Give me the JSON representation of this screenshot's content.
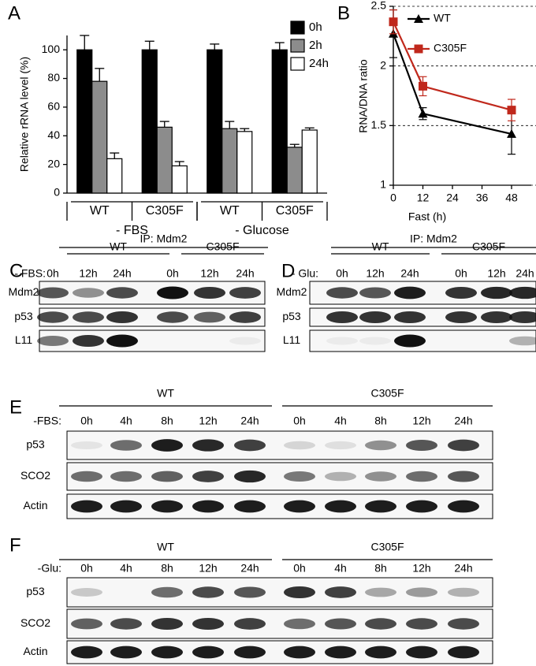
{
  "chart_data": [
    {
      "type": "bar",
      "panel": "A",
      "ylabel": "Relative rRNA level (%)",
      "categories": [
        "WT",
        "C305F",
        "WT",
        "C305F"
      ],
      "group_labels": [
        "- FBS",
        "- Glucose"
      ],
      "series": [
        {
          "name": "0h",
          "color": "#000000",
          "values": [
            100,
            100,
            100,
            100
          ],
          "errors": [
            10,
            6,
            4,
            5
          ]
        },
        {
          "name": "2h",
          "color": "#8c8c8c",
          "values": [
            78,
            46,
            45,
            32
          ],
          "errors": [
            9,
            4,
            5,
            2
          ]
        },
        {
          "name": "24h",
          "color": "#ffffff",
          "values": [
            24,
            19,
            43,
            44
          ],
          "errors": [
            4,
            3,
            2,
            1.5
          ]
        }
      ],
      "ylim": [
        0,
        110
      ],
      "yticks": [
        0,
        20,
        40,
        60,
        80,
        100
      ]
    },
    {
      "type": "line",
      "panel": "B",
      "xlabel": "Fast (h)",
      "ylabel": "RNA/DNA ratio",
      "x": [
        0,
        12,
        48
      ],
      "series": [
        {
          "name": "WT",
          "color": "#000000",
          "marker": "triangle",
          "values": [
            2.27,
            1.6,
            1.43
          ],
          "errors": [
            0.2,
            0.05,
            0.17
          ]
        },
        {
          "name": "C305F",
          "color": "#c0281c",
          "marker": "square",
          "values": [
            2.37,
            1.83,
            1.63
          ],
          "errors": [
            0.1,
            0.08,
            0.09
          ]
        }
      ],
      "xlim": [
        0,
        56
      ],
      "xticks": [
        0,
        12,
        24,
        36,
        48
      ],
      "ylim": [
        1,
        2.5
      ],
      "yticks": [
        1,
        1.5,
        2,
        2.5
      ],
      "grid": true
    }
  ],
  "blots": [
    {
      "label": "C",
      "header": "IP: Mdm2",
      "groups": [
        "WT",
        "C305F"
      ],
      "condition": "- FBS:",
      "lanes": [
        "0h",
        "12h",
        "24h",
        "0h",
        "12h",
        "24h"
      ],
      "rows": [
        "Mdm2",
        "p53",
        "L11"
      ]
    },
    {
      "label": "D",
      "header": "IP: Mdm2",
      "groups": [
        "WT",
        "C305F"
      ],
      "condition": "- Glu:",
      "lanes": [
        "0h",
        "12h",
        "24h",
        "0h",
        "12h",
        "24h"
      ],
      "rows": [
        "Mdm2",
        "p53",
        "L11"
      ]
    },
    {
      "label": "E",
      "groups": [
        "WT",
        "C305F"
      ],
      "condition": "-FBS:",
      "lanes": [
        "0h",
        "4h",
        "8h",
        "12h",
        "24h",
        "0h",
        "4h",
        "8h",
        "12h",
        "24h"
      ],
      "rows": [
        "p53",
        "SCO2",
        "Actin"
      ]
    },
    {
      "label": "F",
      "groups": [
        "WT",
        "C305F"
      ],
      "condition": "-Glu:",
      "lanes": [
        "0h",
        "4h",
        "8h",
        "12h",
        "24h",
        "0h",
        "4h",
        "8h",
        "12h",
        "24h"
      ],
      "rows": [
        "p53",
        "SCO2",
        "Actin"
      ]
    }
  ]
}
